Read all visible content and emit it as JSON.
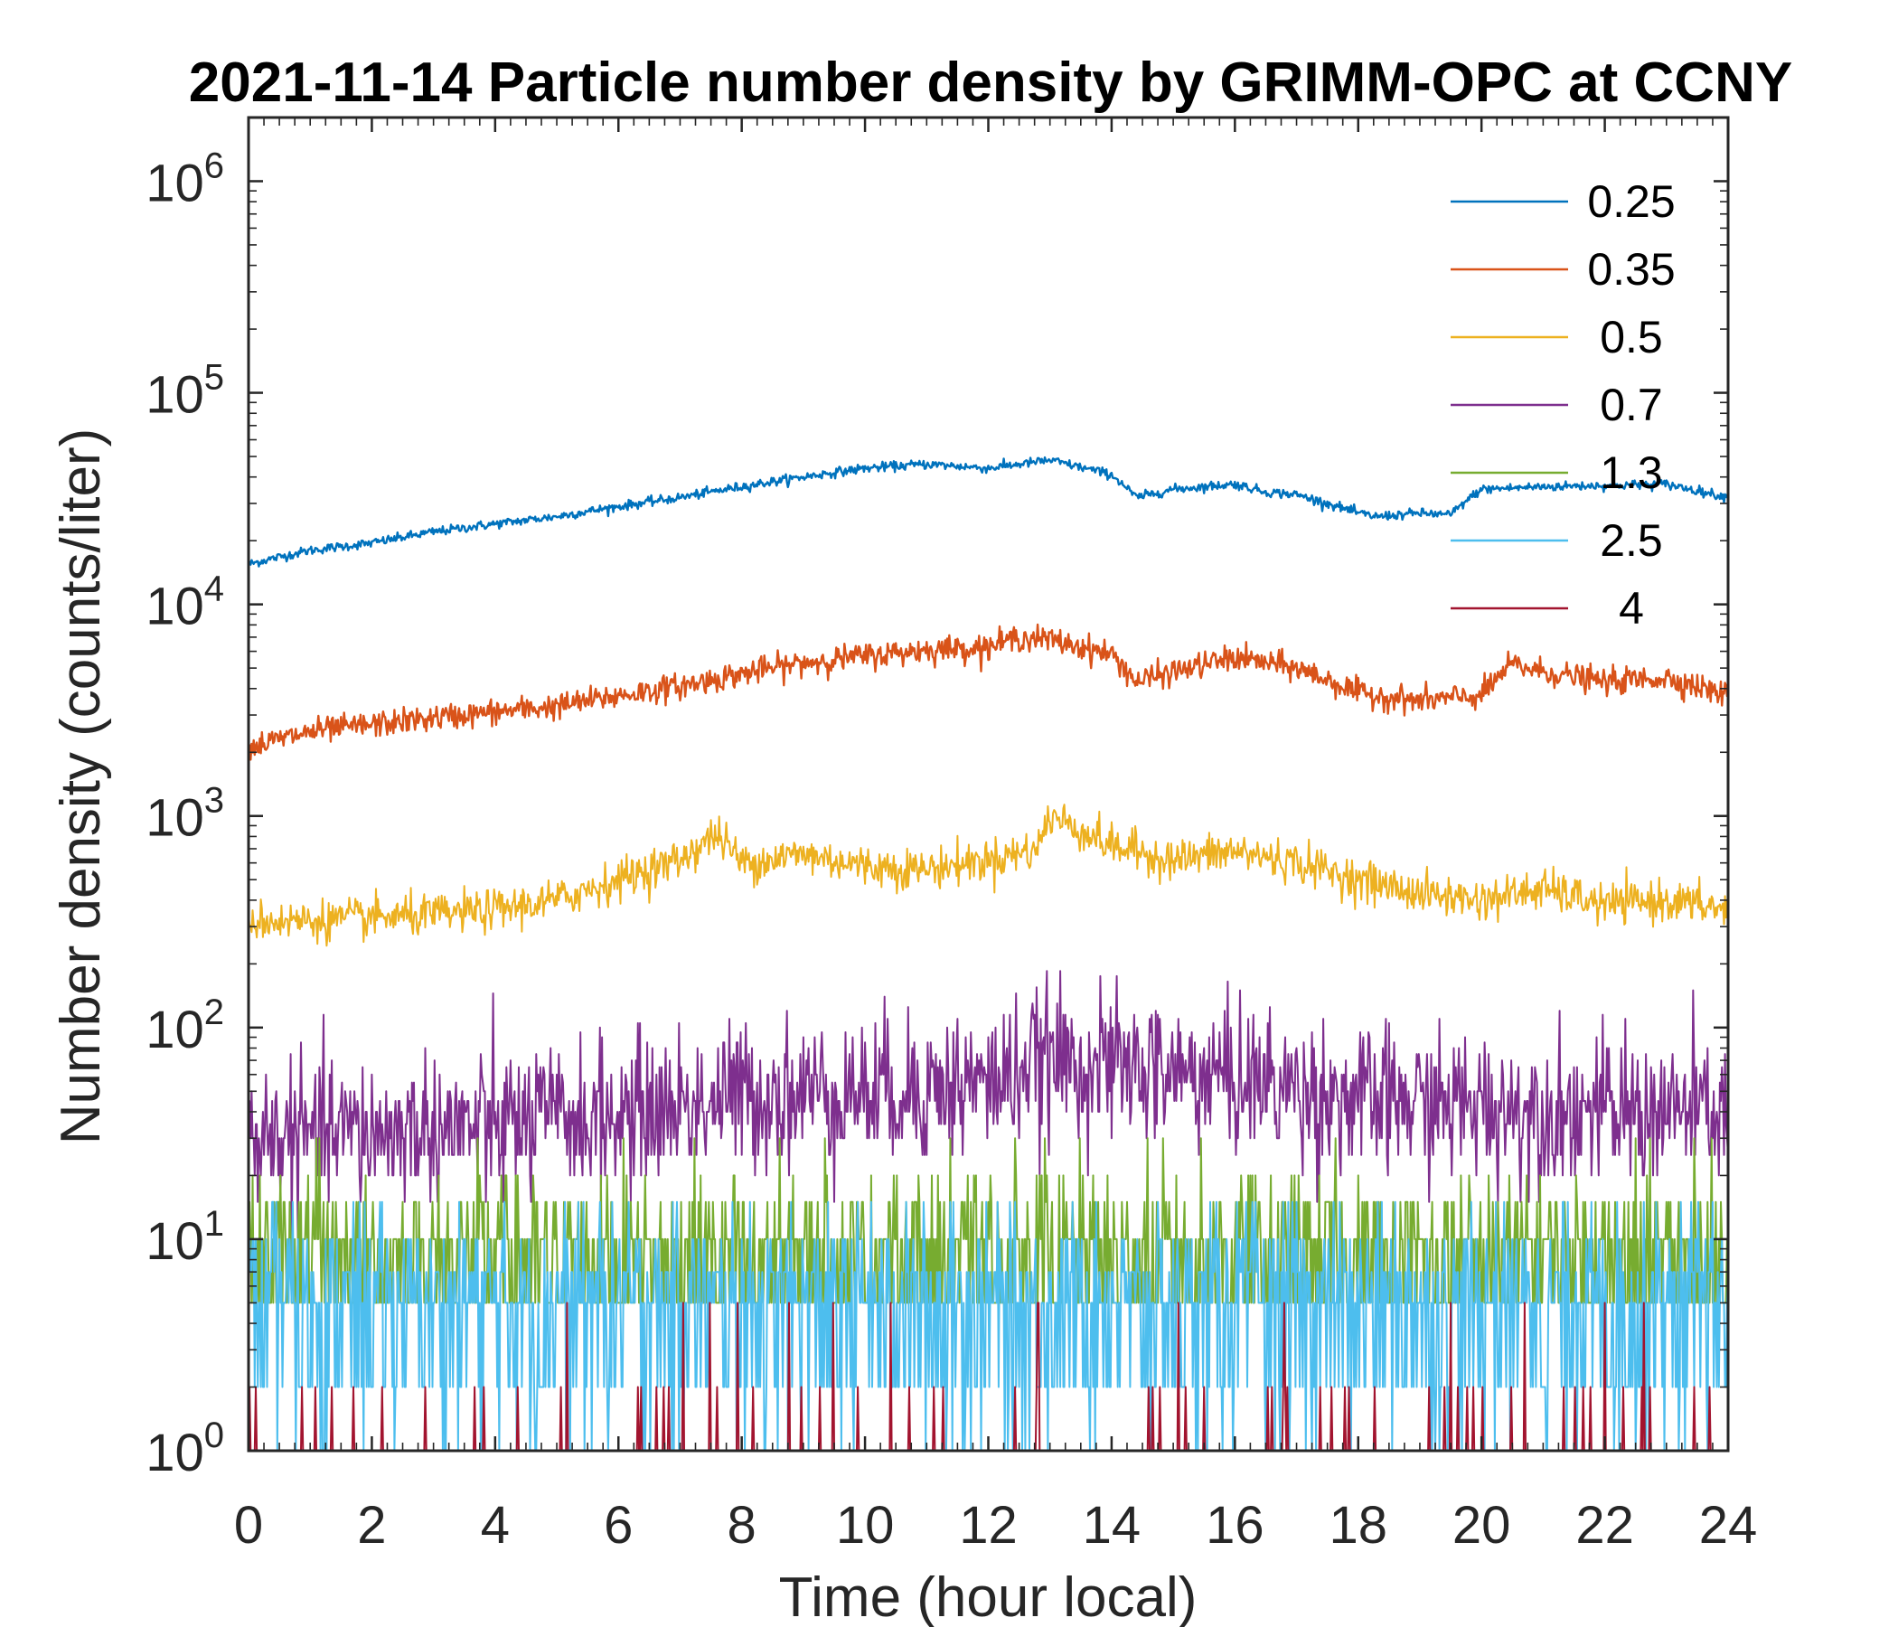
{
  "chart_data": {
    "type": "line",
    "title": "2021-11-14 Particle number density by GRIMM-OPC at CCNY",
    "xlabel": "Time (hour local)",
    "ylabel": "Number density (counts/liter)",
    "xlim": [
      0,
      24
    ],
    "ylim": [
      1,
      2000000
    ],
    "yscale": "log",
    "xticks": [
      0,
      2,
      4,
      6,
      8,
      10,
      12,
      14,
      16,
      18,
      20,
      22,
      24
    ],
    "xtick_labels": [
      "0",
      "2",
      "4",
      "6",
      "8",
      "10",
      "12",
      "14",
      "16",
      "18",
      "20",
      "22",
      "24"
    ],
    "yticks": [
      1,
      10,
      100,
      1000,
      10000,
      100000,
      1000000
    ],
    "ytick_exponents": [
      "0",
      "1",
      "2",
      "3",
      "4",
      "5",
      "6"
    ],
    "ytick_base": "10",
    "grid": false,
    "legend_position": "top-right",
    "series": [
      {
        "name": "0.25",
        "color": "#0072BD",
        "noise": "low",
        "x": [
          0,
          1,
          2,
          3,
          4,
          5,
          6,
          7,
          8,
          9,
          10,
          11,
          11.5,
          12,
          13,
          14,
          14.4,
          15,
          16,
          16.5,
          17,
          18,
          18.3,
          19,
          19.5,
          20,
          21,
          22,
          23,
          24
        ],
        "y": [
          15500,
          18000,
          19500,
          22000,
          24000,
          26000,
          29000,
          32000,
          36000,
          40000,
          44000,
          46000,
          45000,
          44000,
          48000,
          41000,
          32000,
          35000,
          37000,
          34000,
          33000,
          27000,
          26000,
          27000,
          26500,
          35000,
          36000,
          36500,
          37000,
          32000
        ]
      },
      {
        "name": "0.35",
        "color": "#D95319",
        "noise": "mid",
        "x": [
          0,
          1,
          2,
          3,
          4,
          5,
          6,
          7,
          8,
          9,
          10,
          11,
          12,
          12.5,
          13,
          14,
          14.4,
          15,
          16,
          17,
          18,
          19,
          19.5,
          20,
          20.5,
          21,
          22,
          23,
          24
        ],
        "y": [
          2100,
          2500,
          2700,
          2900,
          3100,
          3300,
          3700,
          4100,
          4700,
          5300,
          5700,
          6100,
          6300,
          7000,
          6800,
          5800,
          4300,
          4800,
          5600,
          5000,
          3800,
          3500,
          3600,
          3700,
          5200,
          4800,
          4300,
          4500,
          3700
        ]
      },
      {
        "name": "0.5",
        "color": "#EDB120",
        "noise": "high",
        "x": [
          0,
          1,
          2,
          3,
          4,
          5,
          6,
          7,
          7.6,
          8,
          9,
          10,
          11,
          12,
          12.8,
          13,
          14,
          15,
          16,
          17,
          18,
          19,
          20,
          21,
          22,
          23,
          24
        ],
        "y": [
          320,
          320,
          330,
          340,
          360,
          400,
          500,
          620,
          820,
          600,
          660,
          580,
          560,
          620,
          700,
          1000,
          720,
          620,
          680,
          600,
          500,
          430,
          400,
          450,
          380,
          400,
          360
        ]
      },
      {
        "name": "0.7",
        "color": "#7E2F8E",
        "noise": "vhigh",
        "x": [
          0,
          2,
          4,
          6,
          8,
          10,
          12,
          13,
          14,
          16,
          18,
          20,
          22,
          24
        ],
        "y": [
          30,
          32,
          35,
          38,
          48,
          50,
          55,
          70,
          65,
          58,
          45,
          42,
          40,
          40
        ]
      },
      {
        "name": "1.3",
        "color": "#77AC30",
        "noise": "quant5",
        "x": [
          0,
          24
        ],
        "y": [
          10,
          10
        ]
      },
      {
        "name": "2.5",
        "color": "#4DBEEE",
        "noise": "quant1",
        "x": [
          0,
          24
        ],
        "y": [
          5,
          5
        ]
      },
      {
        "name": "4",
        "color": "#A2142F",
        "noise": "spikes",
        "x": [
          0,
          24
        ],
        "y": [
          1,
          1
        ]
      }
    ]
  }
}
